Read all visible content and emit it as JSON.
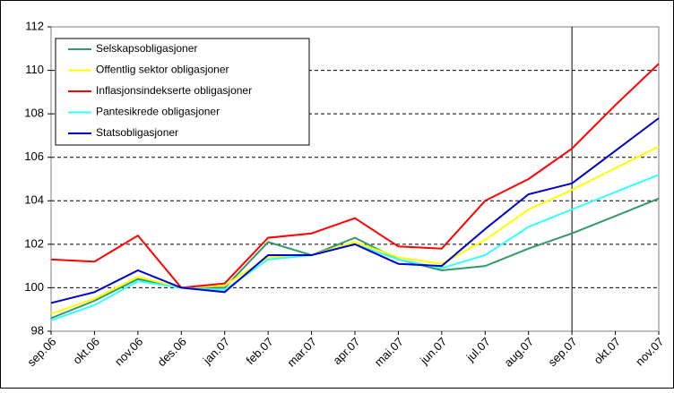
{
  "chart_data": {
    "type": "line",
    "categories": [
      "sep.06",
      "okt.06",
      "nov.06",
      "des.06",
      "jan.07",
      "feb.07",
      "mar.07",
      "apr.07",
      "mai.07",
      "jun.07",
      "jul.07",
      "aug.07",
      "sep.07",
      "okt.07",
      "nov.07"
    ],
    "series": [
      {
        "name": "Selskapsobligasjoner",
        "color": "#339966",
        "values": [
          98.6,
          99.4,
          100.4,
          100.0,
          100.0,
          102.1,
          101.5,
          102.3,
          101.3,
          100.8,
          101.0,
          101.8,
          102.5,
          103.3,
          104.1
        ]
      },
      {
        "name": "Offentlig sektor obligasjoner",
        "color": "#ffff00",
        "values": [
          98.8,
          99.5,
          100.5,
          100.0,
          100.1,
          101.4,
          101.5,
          102.1,
          101.4,
          101.1,
          102.2,
          103.6,
          104.5,
          105.5,
          106.5
        ]
      },
      {
        "name": "Inflasjonsindekserte obligasjoner",
        "color": "#ff0000",
        "values": [
          101.3,
          101.2,
          102.4,
          100.0,
          100.2,
          102.3,
          102.5,
          103.2,
          101.9,
          101.8,
          104.0,
          105.0,
          106.4,
          108.4,
          110.3
        ]
      },
      {
        "name": "Pantesikrede obligasjoner",
        "color": "#33ffff",
        "values": [
          98.5,
          99.2,
          100.3,
          100.0,
          99.9,
          101.3,
          101.5,
          102.0,
          101.3,
          100.9,
          101.5,
          102.8,
          103.6,
          104.4,
          105.2
        ]
      },
      {
        "name": "Statsobligasjoner",
        "color": "#0000cc",
        "values": [
          99.3,
          99.8,
          100.8,
          100.0,
          99.8,
          101.5,
          101.5,
          102.0,
          101.1,
          101.0,
          102.7,
          104.3,
          104.8,
          106.3,
          107.8
        ]
      }
    ],
    "ylim": [
      98,
      112
    ],
    "yticks": [
      98,
      100,
      102,
      104,
      106,
      108,
      110,
      112
    ],
    "grid": true,
    "legend": "top-left",
    "vline": "sep.07"
  }
}
